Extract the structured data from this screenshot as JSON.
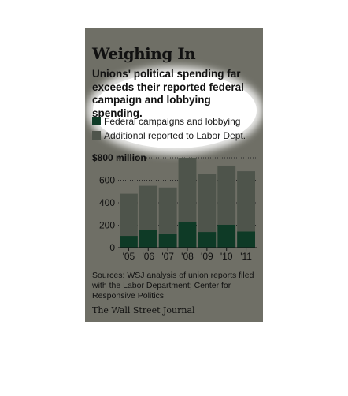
{
  "title": "Weighing In",
  "subtitle": "Unions' political spending far exceeds their reported federal campaign and lobbying spending.",
  "legend": [
    {
      "label": "Federal campaigns and lobbying",
      "color": "#0e3a26"
    },
    {
      "label": "Additional reported to Labor Dept.",
      "color": "#4e544b"
    }
  ],
  "source": "Sources: WSJ analysis of union reports filed with the Labor Department; Center for Responsive Politics",
  "credit": "The Wall Street Journal",
  "chart_data": {
    "type": "bar",
    "stacked": true,
    "categories": [
      "'05",
      "'06",
      "'07",
      "'08",
      "'09",
      "'10",
      "'11"
    ],
    "series": [
      {
        "name": "Federal campaigns and lobbying",
        "values": [
          105,
          155,
          120,
          225,
          140,
          205,
          145
        ],
        "color": "#0e3a26"
      },
      {
        "name": "Additional reported to Labor Dept.",
        "values": [
          375,
          395,
          415,
          575,
          515,
          525,
          535
        ],
        "color": "#4e544b"
      }
    ],
    "yticks": [
      0,
      200,
      400,
      600,
      800
    ],
    "ytick_labels": [
      "0",
      "200",
      "400",
      "600",
      "$800 million"
    ],
    "ylim": [
      0,
      800
    ],
    "xlabel": "",
    "ylabel": "",
    "grid": true
  }
}
